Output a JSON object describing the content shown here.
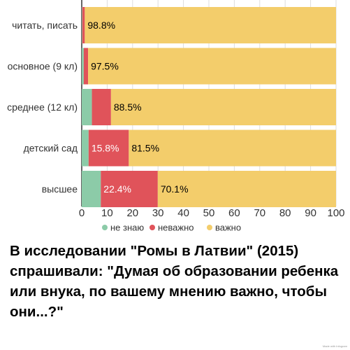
{
  "chart_data": {
    "type": "bar",
    "orientation": "horizontal",
    "stacked": true,
    "categories": [
      "читать, писать",
      "основное (9 кл)",
      "среднее (12 кл)",
      "детский сад",
      "высшее"
    ],
    "series": [
      {
        "name": "не знаю",
        "color": "#8ccba8",
        "values": [
          0.2,
          0.8,
          4.0,
          2.7,
          7.5
        ],
        "labels": [
          "",
          "",
          "",
          "",
          ""
        ]
      },
      {
        "name": "неважно",
        "color": "#e0535a",
        "values": [
          1.0,
          1.7,
          7.5,
          15.8,
          22.4
        ],
        "labels": [
          "",
          "",
          "",
          "15.8%",
          "22.4%"
        ]
      },
      {
        "name": "важно",
        "color": "#f3cd6b",
        "values": [
          98.8,
          97.5,
          88.5,
          81.5,
          70.1
        ],
        "labels": [
          "98.8%",
          "97.5%",
          "88.5%",
          "81.5%",
          "70.1%"
        ]
      }
    ],
    "xlim": [
      0,
      100
    ],
    "xticks": [
      "0",
      "10",
      "20",
      "30",
      "40",
      "50",
      "60",
      "70",
      "80",
      "90",
      "100"
    ],
    "grid": true,
    "legend_position": "bottom"
  },
  "caption": "В исследовании \"Ромы в Латвии\" (2015) спрашивали: \"Думая об образовании ребенка или внука, по вашему мнению важно, чтобы они...?\"",
  "credit": "Made with Infogram"
}
